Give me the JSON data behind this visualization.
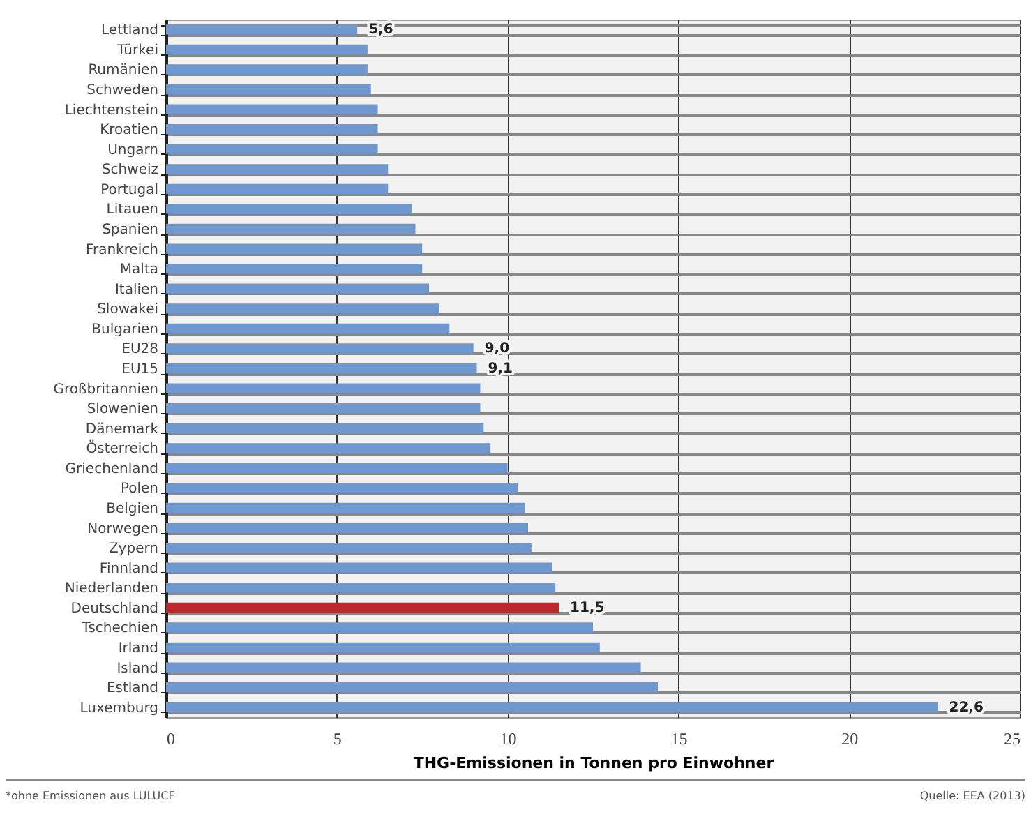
{
  "chart_data": {
    "type": "bar",
    "orientation": "horizontal",
    "xlabel": "THG-Emissionen in Tonnen pro Einwohner",
    "categories": [
      "Lettland",
      "Türkei",
      "Rumänien",
      "Schweden",
      "Liechtenstein",
      "Kroatien",
      "Ungarn",
      "Schweiz",
      "Portugal",
      "Litauen",
      "Spanien",
      "Frankreich",
      "Malta",
      "Italien",
      "Slowakei",
      "Bulgarien",
      "EU28",
      "EU15",
      "Großbritannien",
      "Slowenien",
      "Dänemark",
      "Österreich",
      "Griechenland",
      "Polen",
      "Belgien",
      "Norwegen",
      "Zypern",
      "Finnland",
      "Niederlanden",
      "Deutschland",
      "Tschechien",
      "Irland",
      "Island",
      "Estland",
      "Luxemburg"
    ],
    "values": [
      5.6,
      5.9,
      5.9,
      6.0,
      6.2,
      6.2,
      6.2,
      6.5,
      6.5,
      7.2,
      7.3,
      7.5,
      7.5,
      7.7,
      8.0,
      8.3,
      9.0,
      9.1,
      9.2,
      9.2,
      9.3,
      9.5,
      10.0,
      10.3,
      10.5,
      10.6,
      10.7,
      11.3,
      11.4,
      11.5,
      12.5,
      12.7,
      13.9,
      14.4,
      22.6
    ],
    "colors": [
      "#6f97d0",
      "#6f97d0",
      "#6f97d0",
      "#6f97d0",
      "#6f97d0",
      "#6f97d0",
      "#6f97d0",
      "#6f97d0",
      "#6f97d0",
      "#6f97d0",
      "#6f97d0",
      "#6f97d0",
      "#6f97d0",
      "#6f97d0",
      "#6f97d0",
      "#6f97d0",
      "#6f97d0",
      "#6f97d0",
      "#6f97d0",
      "#6f97d0",
      "#6f97d0",
      "#6f97d0",
      "#6f97d0",
      "#6f97d0",
      "#6f97d0",
      "#6f97d0",
      "#6f97d0",
      "#6f97d0",
      "#6f97d0",
      "#c0282d",
      "#6f97d0",
      "#6f97d0",
      "#6f97d0",
      "#6f97d0",
      "#6f97d0"
    ],
    "value_labels": [
      "5,6",
      null,
      null,
      null,
      null,
      null,
      null,
      null,
      null,
      null,
      null,
      null,
      null,
      null,
      null,
      null,
      "9,0",
      "9,1",
      null,
      null,
      null,
      null,
      null,
      null,
      null,
      null,
      null,
      null,
      null,
      "11,5",
      null,
      null,
      null,
      null,
      "22,6"
    ],
    "xlim": [
      0,
      25
    ],
    "xticks": [
      0,
      5,
      10,
      15,
      20,
      25
    ],
    "grid": true,
    "annotations": [
      "*ohne Emissionen aus LULUCF",
      "Quelle: EEA (2013)"
    ]
  }
}
